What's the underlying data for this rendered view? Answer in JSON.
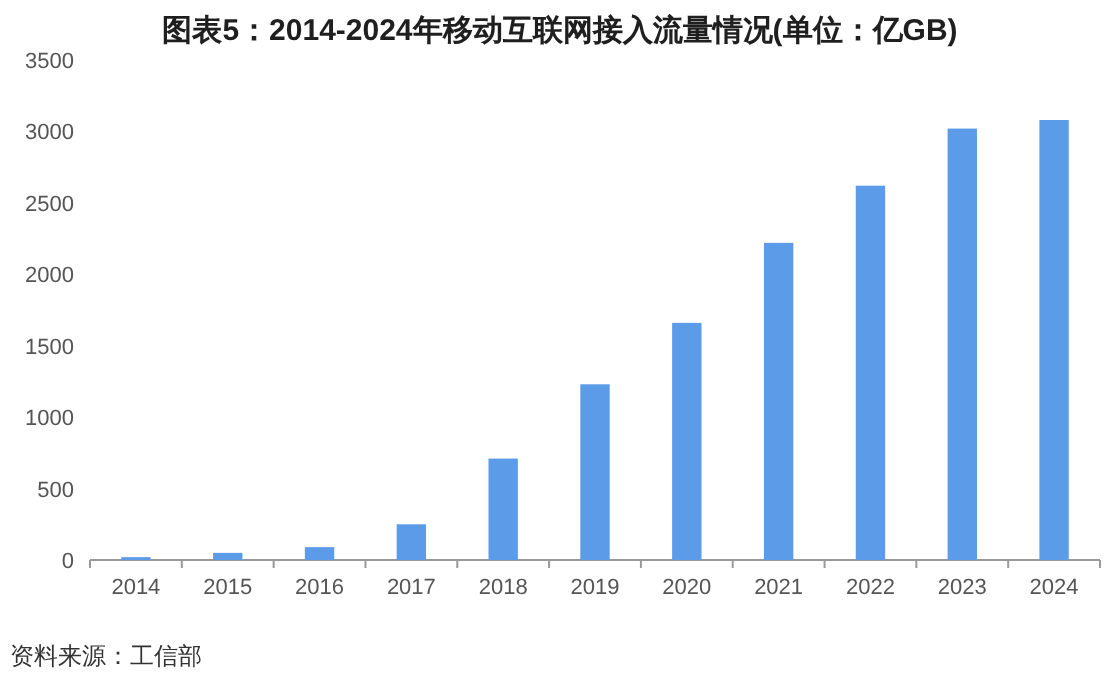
{
  "chart_data": {
    "type": "bar",
    "title": "图表5：2014-2024年移动互联网接入流量情况(单位：亿GB)",
    "categories": [
      "2014",
      "2015",
      "2016",
      "2017",
      "2018",
      "2019",
      "2020",
      "2021",
      "2022",
      "2023",
      "2024"
    ],
    "values": [
      20,
      50,
      90,
      250,
      710,
      1230,
      1660,
      2220,
      2620,
      3020,
      3080
    ],
    "color": "#5b9be8",
    "ylim": [
      0,
      3500
    ],
    "yticks": [
      0,
      500,
      1000,
      1500,
      2000,
      2500,
      3000,
      3500
    ],
    "annotations": [
      "资料来源：工信部"
    ]
  }
}
